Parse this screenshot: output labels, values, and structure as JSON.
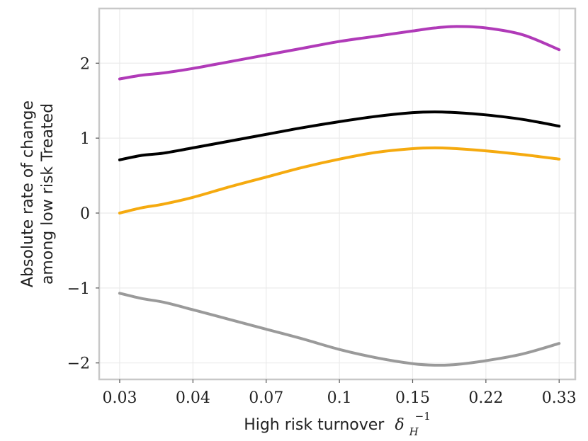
{
  "chart_data": {
    "type": "line",
    "title": "",
    "xlabel": "High risk turnover",
    "xlabel_symbol": "δ",
    "xlabel_sub": "H",
    "xlabel_sup": "−1",
    "ylabel_line1": "Absolute rate of change",
    "ylabel_line2": "among low risk Treated",
    "x_tick_labels": [
      "0.03",
      "0.04",
      "0.07",
      "0.1",
      "0.15",
      "0.22",
      "0.33"
    ],
    "y_ticks": [
      {
        "value": -2,
        "label": "−2"
      },
      {
        "value": -1,
        "label": "−1"
      },
      {
        "value": 0,
        "label": "0"
      },
      {
        "value": 1,
        "label": "1"
      },
      {
        "value": 2,
        "label": "2"
      }
    ],
    "x_index_range": [
      -0.28,
      6.22
    ],
    "ylim": [
      -2.22,
      2.73
    ],
    "grid": true,
    "legend": "none",
    "series": [
      {
        "name": "purple",
        "color": "#b03ab8",
        "points": [
          [
            0,
            1.79
          ],
          [
            0.3,
            1.84
          ],
          [
            0.6,
            1.87
          ],
          [
            1,
            1.93
          ],
          [
            1.5,
            2.02
          ],
          [
            2,
            2.11
          ],
          [
            2.5,
            2.2
          ],
          [
            3,
            2.29
          ],
          [
            3.5,
            2.36
          ],
          [
            4,
            2.43
          ],
          [
            4.3,
            2.47
          ],
          [
            4.6,
            2.49
          ],
          [
            5,
            2.47
          ],
          [
            5.5,
            2.38
          ],
          [
            6,
            2.18
          ]
        ]
      },
      {
        "name": "black",
        "color": "#000000",
        "points": [
          [
            0,
            0.71
          ],
          [
            0.3,
            0.77
          ],
          [
            0.6,
            0.8
          ],
          [
            1,
            0.87
          ],
          [
            1.5,
            0.96
          ],
          [
            2,
            1.05
          ],
          [
            2.5,
            1.14
          ],
          [
            3,
            1.22
          ],
          [
            3.5,
            1.29
          ],
          [
            4,
            1.34
          ],
          [
            4.3,
            1.35
          ],
          [
            4.6,
            1.34
          ],
          [
            5,
            1.31
          ],
          [
            5.5,
            1.25
          ],
          [
            6,
            1.16
          ]
        ]
      },
      {
        "name": "orange",
        "color": "#f5aa0f",
        "points": [
          [
            0,
            0.0
          ],
          [
            0.3,
            0.07
          ],
          [
            0.6,
            0.12
          ],
          [
            1,
            0.21
          ],
          [
            1.5,
            0.35
          ],
          [
            2,
            0.48
          ],
          [
            2.5,
            0.61
          ],
          [
            3,
            0.72
          ],
          [
            3.5,
            0.81
          ],
          [
            4,
            0.86
          ],
          [
            4.3,
            0.87
          ],
          [
            4.6,
            0.86
          ],
          [
            5,
            0.83
          ],
          [
            5.5,
            0.78
          ],
          [
            6,
            0.72
          ]
        ]
      },
      {
        "name": "grey",
        "color": "#9a9a9a",
        "points": [
          [
            0,
            -1.07
          ],
          [
            0.3,
            -1.14
          ],
          [
            0.6,
            -1.19
          ],
          [
            1,
            -1.29
          ],
          [
            1.5,
            -1.42
          ],
          [
            2,
            -1.55
          ],
          [
            2.5,
            -1.68
          ],
          [
            3,
            -1.82
          ],
          [
            3.5,
            -1.93
          ],
          [
            4,
            -2.01
          ],
          [
            4.3,
            -2.03
          ],
          [
            4.6,
            -2.02
          ],
          [
            5,
            -1.97
          ],
          [
            5.5,
            -1.88
          ],
          [
            6,
            -1.74
          ]
        ]
      }
    ]
  }
}
